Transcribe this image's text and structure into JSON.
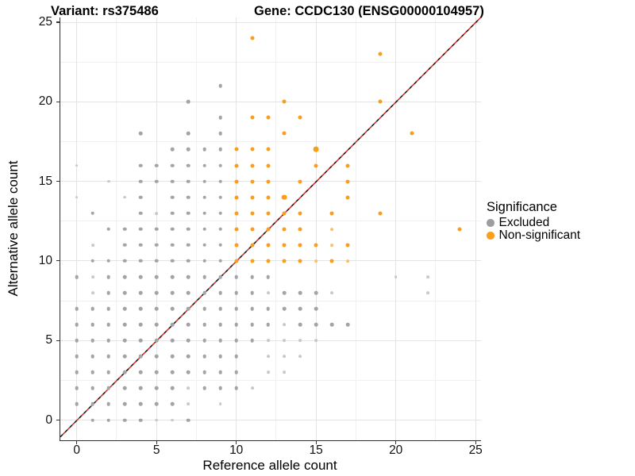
{
  "header": {
    "variant_title": "Variant: rs375486",
    "gene_title": "Gene: CCDC130 (ENSG00000104957)"
  },
  "axes": {
    "x": {
      "label": "Reference allele count",
      "ticks": [
        "0",
        "5",
        "10",
        "15",
        "20",
        "25"
      ]
    },
    "y": {
      "label": "Alternative allele count",
      "ticks": [
        "0",
        "5",
        "10",
        "15",
        "20",
        "25"
      ]
    }
  },
  "legend": {
    "title": "Significance",
    "items": [
      {
        "label": "Excluded",
        "color": "#9D9DA1"
      },
      {
        "label": "Non-significant",
        "color": "#FA9E1B"
      }
    ]
  },
  "colors": {
    "excluded": "#A4A4A8",
    "excluded_dim": "#C9C9CD",
    "nonsig": "#F99E1C",
    "nonsig_dim": "#FBC06A",
    "abline_red": "#DE2D26",
    "abline_black": "#1A1A1A",
    "grid_major": "#E4E4E6",
    "grid_minor": "#F1F1F3"
  },
  "chart_data": {
    "type": "scatter",
    "title": "Variant: rs375486 / Gene: CCDC130 (ENSG00000104957)",
    "xlabel": "Reference allele count",
    "ylabel": "Alternative allele count",
    "xlim": [
      -1.1,
      25.3
    ],
    "ylim": [
      -1.3,
      25.3
    ],
    "x_ticks": [
      0,
      5,
      10,
      15,
      20,
      25
    ],
    "y_ticks": [
      0,
      5,
      10,
      15,
      20,
      25
    ],
    "grid": "major+minor",
    "legend_position": "right",
    "identity_line": {
      "slope": 1,
      "intercept": 0,
      "style": "dashed",
      "colors": [
        "red",
        "black"
      ]
    },
    "series": [
      {
        "name": "Excluded",
        "points": [
          [
            1,
            0
          ],
          [
            2,
            0
          ],
          [
            3,
            0
          ],
          [
            4,
            0
          ],
          [
            5,
            0,
            "d"
          ],
          [
            6,
            0,
            "d"
          ],
          [
            7,
            0
          ],
          [
            0,
            1
          ],
          [
            1,
            1
          ],
          [
            2,
            1
          ],
          [
            3,
            1
          ],
          [
            4,
            1
          ],
          [
            5,
            1
          ],
          [
            6,
            1
          ],
          [
            7,
            1,
            "d"
          ],
          [
            9,
            1,
            "d"
          ],
          [
            0,
            2
          ],
          [
            1,
            2
          ],
          [
            2,
            2
          ],
          [
            3,
            2
          ],
          [
            4,
            2
          ],
          [
            5,
            2
          ],
          [
            6,
            2
          ],
          [
            7,
            2,
            "d"
          ],
          [
            8,
            2
          ],
          [
            9,
            2
          ],
          [
            10,
            2
          ],
          [
            11,
            2,
            "d"
          ],
          [
            0,
            3
          ],
          [
            1,
            3
          ],
          [
            2,
            3
          ],
          [
            3,
            3
          ],
          [
            4,
            3
          ],
          [
            5,
            3
          ],
          [
            6,
            3
          ],
          [
            7,
            3
          ],
          [
            8,
            3
          ],
          [
            9,
            3
          ],
          [
            10,
            3
          ],
          [
            12,
            3,
            "d"
          ],
          [
            13,
            3,
            "d"
          ],
          [
            0,
            4
          ],
          [
            1,
            4
          ],
          [
            2,
            4
          ],
          [
            3,
            4
          ],
          [
            4,
            4
          ],
          [
            5,
            4
          ],
          [
            6,
            4
          ],
          [
            7,
            4
          ],
          [
            8,
            4
          ],
          [
            9,
            4
          ],
          [
            10,
            4
          ],
          [
            12,
            4,
            "d"
          ],
          [
            13,
            4,
            "d"
          ],
          [
            14,
            4,
            "d"
          ],
          [
            0,
            5
          ],
          [
            1,
            5
          ],
          [
            2,
            5
          ],
          [
            3,
            5
          ],
          [
            4,
            5
          ],
          [
            5,
            5
          ],
          [
            6,
            5
          ],
          [
            7,
            5
          ],
          [
            8,
            5
          ],
          [
            9,
            5
          ],
          [
            10,
            5
          ],
          [
            11,
            5
          ],
          [
            12,
            5,
            "d"
          ],
          [
            13,
            5,
            "d"
          ],
          [
            14,
            5,
            "d"
          ],
          [
            15,
            5,
            "d"
          ],
          [
            0,
            6
          ],
          [
            1,
            6
          ],
          [
            2,
            6
          ],
          [
            3,
            6
          ],
          [
            4,
            6
          ],
          [
            5,
            6
          ],
          [
            6,
            6
          ],
          [
            7,
            6
          ],
          [
            8,
            6
          ],
          [
            9,
            6
          ],
          [
            10,
            6
          ],
          [
            11,
            6
          ],
          [
            12,
            6
          ],
          [
            13,
            6,
            "d"
          ],
          [
            14,
            6
          ],
          [
            15,
            6
          ],
          [
            16,
            6
          ],
          [
            17,
            6
          ],
          [
            0,
            7
          ],
          [
            1,
            7
          ],
          [
            2,
            7
          ],
          [
            3,
            7
          ],
          [
            4,
            7
          ],
          [
            5,
            7
          ],
          [
            6,
            7
          ],
          [
            7,
            7
          ],
          [
            8,
            7
          ],
          [
            9,
            7
          ],
          [
            10,
            7
          ],
          [
            11,
            7
          ],
          [
            12,
            7
          ],
          [
            13,
            7
          ],
          [
            14,
            7
          ],
          [
            15,
            7
          ],
          [
            1,
            8,
            "d"
          ],
          [
            2,
            8
          ],
          [
            3,
            8
          ],
          [
            4,
            8
          ],
          [
            5,
            8
          ],
          [
            6,
            8
          ],
          [
            7,
            8
          ],
          [
            8,
            8
          ],
          [
            9,
            8
          ],
          [
            10,
            8
          ],
          [
            11,
            8
          ],
          [
            12,
            8,
            "d"
          ],
          [
            13,
            8
          ],
          [
            14,
            8
          ],
          [
            15,
            8
          ],
          [
            16,
            8,
            "d"
          ],
          [
            22,
            8,
            "d"
          ],
          [
            0,
            9
          ],
          [
            1,
            9,
            "d"
          ],
          [
            2,
            9
          ],
          [
            3,
            9
          ],
          [
            4,
            9
          ],
          [
            5,
            9
          ],
          [
            6,
            9
          ],
          [
            7,
            9
          ],
          [
            8,
            9
          ],
          [
            9,
            9
          ],
          [
            10,
            9
          ],
          [
            11,
            9
          ],
          [
            12,
            9
          ],
          [
            20,
            9,
            "d"
          ],
          [
            22,
            9,
            "d"
          ],
          [
            1,
            10
          ],
          [
            2,
            10
          ],
          [
            3,
            10
          ],
          [
            4,
            10
          ],
          [
            5,
            10
          ],
          [
            6,
            10
          ],
          [
            7,
            10
          ],
          [
            8,
            10
          ],
          [
            9,
            10
          ],
          [
            1,
            11,
            "d"
          ],
          [
            3,
            11
          ],
          [
            4,
            11
          ],
          [
            5,
            11
          ],
          [
            6,
            11
          ],
          [
            7,
            11
          ],
          [
            8,
            11
          ],
          [
            9,
            11
          ],
          [
            2,
            12
          ],
          [
            3,
            12
          ],
          [
            4,
            12
          ],
          [
            5,
            12
          ],
          [
            6,
            12
          ],
          [
            7,
            12
          ],
          [
            8,
            12
          ],
          [
            9,
            12
          ],
          [
            1,
            13
          ],
          [
            4,
            13
          ],
          [
            5,
            13,
            "d"
          ],
          [
            6,
            13
          ],
          [
            7,
            13
          ],
          [
            8,
            13
          ],
          [
            9,
            13
          ],
          [
            0,
            14,
            "d"
          ],
          [
            3,
            14,
            "d"
          ],
          [
            4,
            14
          ],
          [
            6,
            14
          ],
          [
            7,
            14
          ],
          [
            8,
            14
          ],
          [
            9,
            14
          ],
          [
            2,
            15,
            "d"
          ],
          [
            4,
            15
          ],
          [
            5,
            15
          ],
          [
            6,
            15
          ],
          [
            7,
            15
          ],
          [
            8,
            15
          ],
          [
            9,
            15
          ],
          [
            0,
            16,
            "d"
          ],
          [
            4,
            16
          ],
          [
            5,
            16
          ],
          [
            6,
            16
          ],
          [
            7,
            16
          ],
          [
            8,
            16
          ],
          [
            9,
            16
          ],
          [
            6,
            17
          ],
          [
            7,
            17
          ],
          [
            8,
            17
          ],
          [
            9,
            17
          ],
          [
            4,
            18
          ],
          [
            7,
            18
          ],
          [
            9,
            18
          ],
          [
            9,
            19
          ],
          [
            7,
            20
          ],
          [
            9,
            21
          ]
        ]
      },
      {
        "name": "Non-significant",
        "points": [
          [
            10,
            10
          ],
          [
            11,
            10
          ],
          [
            12,
            10
          ],
          [
            13,
            10
          ],
          [
            14,
            10
          ],
          [
            15,
            10,
            "d"
          ],
          [
            16,
            10
          ],
          [
            17,
            10,
            "d"
          ],
          [
            10,
            11
          ],
          [
            11,
            11
          ],
          [
            12,
            11
          ],
          [
            13,
            11
          ],
          [
            14,
            11
          ],
          [
            15,
            11
          ],
          [
            16,
            11,
            "d"
          ],
          [
            17,
            11
          ],
          [
            10,
            12
          ],
          [
            11,
            12
          ],
          [
            12,
            12
          ],
          [
            13,
            12
          ],
          [
            14,
            12
          ],
          [
            16,
            12,
            "d"
          ],
          [
            24,
            12
          ],
          [
            10,
            13
          ],
          [
            11,
            13
          ],
          [
            12,
            13
          ],
          [
            13,
            13
          ],
          [
            14,
            13
          ],
          [
            16,
            13
          ],
          [
            19,
            13
          ],
          [
            10,
            14
          ],
          [
            11,
            14
          ],
          [
            12,
            14
          ],
          [
            13,
            14,
            "b"
          ],
          [
            17,
            14
          ],
          [
            10,
            15
          ],
          [
            11,
            15
          ],
          [
            12,
            15
          ],
          [
            14,
            15
          ],
          [
            17,
            15
          ],
          [
            10,
            16
          ],
          [
            11,
            16
          ],
          [
            12,
            16
          ],
          [
            15,
            16
          ],
          [
            17,
            16
          ],
          [
            10,
            17
          ],
          [
            11,
            17
          ],
          [
            12,
            17
          ],
          [
            15,
            17,
            "b"
          ],
          [
            13,
            18
          ],
          [
            21,
            18
          ],
          [
            11,
            19
          ],
          [
            12,
            19
          ],
          [
            14,
            19
          ],
          [
            13,
            20
          ],
          [
            19,
            20
          ],
          [
            19,
            23
          ],
          [
            11,
            24
          ]
        ]
      }
    ]
  }
}
